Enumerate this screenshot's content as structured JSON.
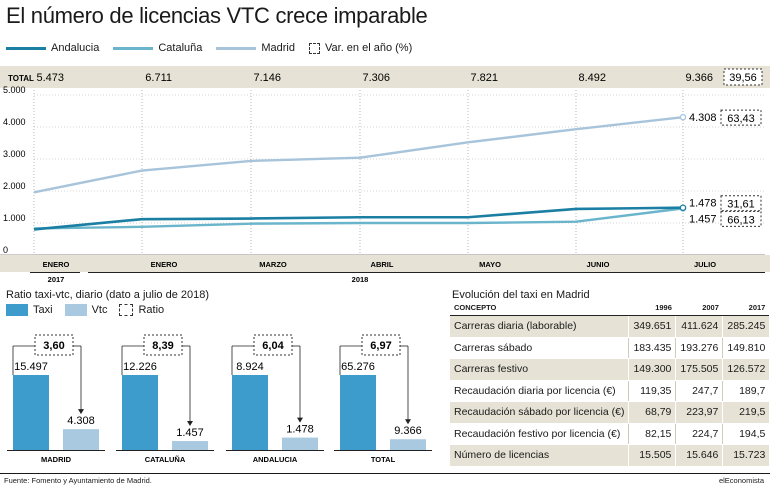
{
  "title": "El número de licencias VTC crece imparable",
  "legend": {
    "andalucia": "Andalucia",
    "cataluna": "Cataluña",
    "madrid": "Madrid",
    "var": "Var. en el año (%)"
  },
  "colors": {
    "andalucia": "#1a7fa2",
    "cataluna": "#6bb5cc",
    "madrid": "#a7c4db",
    "taxi": "#3d9ccc",
    "vtc": "#a8c9e0",
    "band": "#e6e3d6"
  },
  "total_row": {
    "label": "TOTAL",
    "values": [
      "5.473",
      "6.711",
      "7.146",
      "7.306",
      "7.821",
      "8.492",
      "9.366"
    ],
    "var": "39,56"
  },
  "chart_data": [
    {
      "type": "line",
      "title": "El número de licencias VTC crece imparable",
      "x": [
        "Enero 2017",
        "Enero 2018",
        "Marzo 2018",
        "Abril 2018",
        "Mayo 2018",
        "Junio 2018",
        "Julio 2018"
      ],
      "tick_labels": [
        "ENERO",
        "ENERO",
        "MARZO",
        "ABRIL",
        "MAYO",
        "JUNIO",
        "JULIO"
      ],
      "year_labels": [
        "2017",
        "2018"
      ],
      "ylim": [
        0,
        5000
      ],
      "yticks": [
        "5.000",
        "4.000",
        "3.000",
        "2.000",
        "1.000",
        "0"
      ],
      "ytick_values": [
        5000,
        4000,
        3000,
        2000,
        1000,
        0
      ],
      "grid": true,
      "legend_position": "top-left",
      "series": [
        {
          "name": "Andalucia",
          "key": "andalucia",
          "values": [
            800,
            1120,
            1140,
            1180,
            1180,
            1440,
            1478
          ],
          "end_label": "1.478",
          "var": "31,61"
        },
        {
          "name": "Cataluña",
          "key": "cataluna",
          "values": [
            830,
            880,
            980,
            1000,
            1000,
            1040,
            1457
          ],
          "end_label": "1.457",
          "var": "66,13"
        },
        {
          "name": "Madrid",
          "key": "madrid",
          "values": [
            1960,
            2640,
            2940,
            3040,
            3520,
            3930,
            4308
          ],
          "end_label": "4.308",
          "var": "63,43"
        }
      ]
    },
    {
      "type": "bar",
      "title": "Ratio taxi-vtc, diario (dato a julio de 2018)",
      "legend": {
        "taxi": "Taxi",
        "vtc": "Vtc",
        "ratio": "Ratio"
      },
      "categories": [
        "MADRID",
        "CATALUÑA",
        "ANDALUCIA",
        "TOTAL"
      ],
      "ylim": [
        0,
        70000
      ],
      "series": [
        {
          "name": "Taxi",
          "values": [
            15497,
            12226,
            8924,
            65276
          ],
          "labels": [
            "15.497",
            "12.226",
            "8.924",
            "65.276"
          ]
        },
        {
          "name": "Vtc",
          "values": [
            4308,
            1457,
            1478,
            9366
          ],
          "labels": [
            "4.308",
            "1.457",
            "1.478",
            "9.366"
          ]
        }
      ],
      "ratios": [
        "3,60",
        "8,39",
        "6,04",
        "6,97"
      ]
    },
    {
      "type": "table",
      "title": "Evolución del taxi en Madrid",
      "columns": [
        "CONCEPTO",
        "1996",
        "2007",
        "2017"
      ],
      "rows": [
        [
          "Carreras diaria (laborable)",
          "349.651",
          "411.624",
          "285.245"
        ],
        [
          "Carreras sábado",
          "183.435",
          "193.276",
          "149.810"
        ],
        [
          "Carreras festivo",
          "149.300",
          "175.505",
          "126.572"
        ],
        [
          "Recaudación diaria por licencia (€)",
          "119,35",
          "247,7",
          "189,7"
        ],
        [
          "Recaudación sábado por licencia (€)",
          "68,79",
          "223,97",
          "219,5"
        ],
        [
          "Recaudación festivo por licencia (€)",
          "82,15",
          "224,7",
          "194,5"
        ],
        [
          "Número de licencias",
          "15.505",
          "15.646",
          "15.723"
        ]
      ]
    }
  ],
  "footer": {
    "source": "Fuente: Fomento y Ayuntamiento de Madrid.",
    "brand": "elEconomista"
  }
}
